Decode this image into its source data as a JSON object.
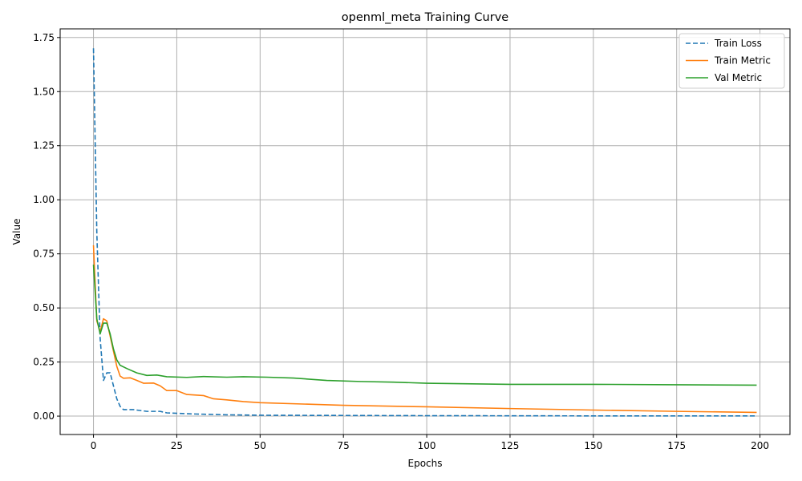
{
  "chart_data": {
    "type": "line",
    "title": "openml_meta Training Curve",
    "xlabel": "Epochs",
    "ylabel": "Value",
    "xlim": [
      -10,
      209
    ],
    "ylim": [
      -0.085,
      1.79
    ],
    "xticks": [
      0,
      25,
      50,
      75,
      100,
      125,
      150,
      175,
      200
    ],
    "xtick_labels": [
      "0",
      "25",
      "50",
      "75",
      "100",
      "125",
      "150",
      "175",
      "200"
    ],
    "yticks": [
      0.0,
      0.25,
      0.5,
      0.75,
      1.0,
      1.25,
      1.5,
      1.75
    ],
    "ytick_labels": [
      "0.00",
      "0.25",
      "0.50",
      "0.75",
      "1.00",
      "1.25",
      "1.50",
      "1.75"
    ],
    "grid": true,
    "legend_position": "top-right",
    "series": [
      {
        "name": "Train Loss",
        "color": "#1f77b4",
        "dash": "dashed",
        "points": [
          [
            0,
            1.7
          ],
          [
            1,
            0.85
          ],
          [
            2,
            0.36
          ],
          [
            3,
            0.165
          ],
          [
            4,
            0.2
          ],
          [
            5,
            0.2
          ],
          [
            6,
            0.14
          ],
          [
            7,
            0.08
          ],
          [
            8,
            0.045
          ],
          [
            9,
            0.03
          ],
          [
            12,
            0.03
          ],
          [
            16,
            0.022
          ],
          [
            20,
            0.022
          ],
          [
            22,
            0.015
          ],
          [
            30,
            0.01
          ],
          [
            40,
            0.006
          ],
          [
            50,
            0.004
          ],
          [
            75,
            0.003
          ],
          [
            100,
            0.002
          ],
          [
            150,
            0.001
          ],
          [
            199,
            0.001
          ]
        ]
      },
      {
        "name": "Train Metric",
        "color": "#ff7f0e",
        "dash": "solid",
        "points": [
          [
            0,
            0.79
          ],
          [
            1,
            0.44
          ],
          [
            2,
            0.39
          ],
          [
            3,
            0.45
          ],
          [
            4,
            0.44
          ],
          [
            5,
            0.37
          ],
          [
            6,
            0.3
          ],
          [
            7,
            0.23
          ],
          [
            8,
            0.185
          ],
          [
            9,
            0.175
          ],
          [
            11,
            0.177
          ],
          [
            13,
            0.165
          ],
          [
            15,
            0.152
          ],
          [
            18,
            0.153
          ],
          [
            20,
            0.14
          ],
          [
            22,
            0.118
          ],
          [
            25,
            0.118
          ],
          [
            28,
            0.1
          ],
          [
            33,
            0.095
          ],
          [
            36,
            0.08
          ],
          [
            40,
            0.075
          ],
          [
            45,
            0.067
          ],
          [
            50,
            0.062
          ],
          [
            75,
            0.05
          ],
          [
            100,
            0.043
          ],
          [
            125,
            0.035
          ],
          [
            150,
            0.028
          ],
          [
            175,
            0.022
          ],
          [
            199,
            0.017
          ]
        ]
      },
      {
        "name": "Val Metric",
        "color": "#2ca02c",
        "dash": "solid",
        "points": [
          [
            0,
            0.7
          ],
          [
            1,
            0.45
          ],
          [
            2,
            0.38
          ],
          [
            3,
            0.43
          ],
          [
            4,
            0.43
          ],
          [
            5,
            0.38
          ],
          [
            6,
            0.31
          ],
          [
            7,
            0.26
          ],
          [
            8,
            0.235
          ],
          [
            10,
            0.22
          ],
          [
            13,
            0.2
          ],
          [
            16,
            0.188
          ],
          [
            19,
            0.19
          ],
          [
            22,
            0.182
          ],
          [
            28,
            0.179
          ],
          [
            33,
            0.183
          ],
          [
            40,
            0.18
          ],
          [
            45,
            0.182
          ],
          [
            52,
            0.18
          ],
          [
            60,
            0.176
          ],
          [
            70,
            0.165
          ],
          [
            80,
            0.16
          ],
          [
            90,
            0.157
          ],
          [
            100,
            0.152
          ],
          [
            125,
            0.147
          ],
          [
            150,
            0.147
          ],
          [
            175,
            0.145
          ],
          [
            199,
            0.143
          ]
        ]
      }
    ]
  }
}
